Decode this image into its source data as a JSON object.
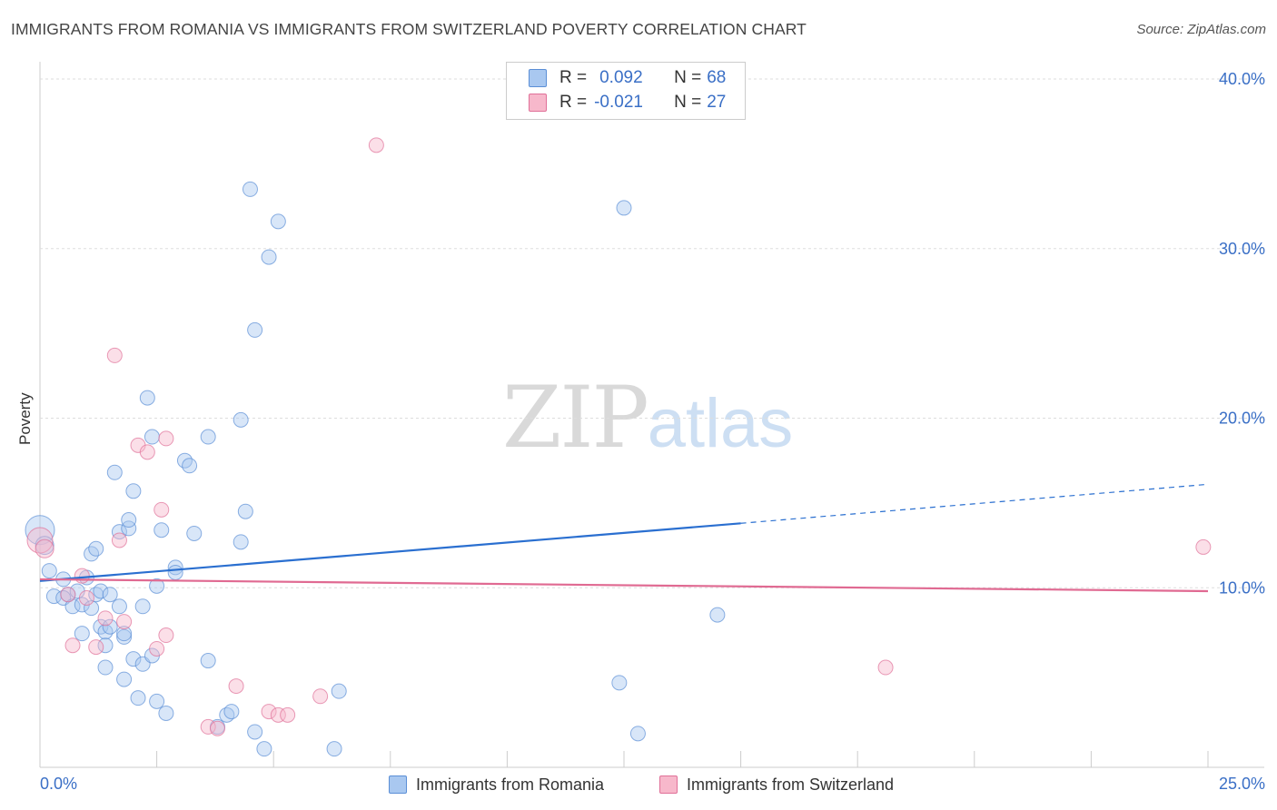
{
  "title": "IMMIGRANTS FROM ROMANIA VS IMMIGRANTS FROM SWITZERLAND POVERTY CORRELATION CHART",
  "source": "Source: ZipAtlas.com",
  "watermark": {
    "zip": "ZIP",
    "atlas": "atlas"
  },
  "legend": {
    "romania": {
      "r_label": "R =",
      "r_value": "0.092",
      "n_label": "N =",
      "n_value": "68"
    },
    "switzerland": {
      "r_label": "R =",
      "r_value": "-0.021",
      "n_label": "N =",
      "n_value": "27"
    }
  },
  "colors": {
    "romania_fill": "#a9c8f0",
    "romania_stroke": "#5b8fd6",
    "romania_line": "#2a6fd0",
    "switzerland_fill": "#f7b8cb",
    "switzerland_stroke": "#e07098",
    "switzerland_line": "#e06a92",
    "axis_text": "#3a6fc6"
  },
  "chart_data": {
    "type": "scatter",
    "title": "IMMIGRANTS FROM ROMANIA VS IMMIGRANTS FROM SWITZERLAND POVERTY CORRELATION CHART",
    "xlabel": "",
    "ylabel": "Poverty",
    "xlim": [
      0,
      25
    ],
    "ylim": [
      0,
      40
    ],
    "x_tick_labels": [
      "0.0%",
      "25.0%"
    ],
    "y_tick_labels": [
      "10.0%",
      "20.0%",
      "30.0%",
      "40.0%"
    ],
    "y_ticks": [
      10,
      20,
      30,
      40
    ],
    "grid": true,
    "legend_position": "top-center",
    "series": [
      {
        "name": "Immigrants from Romania",
        "r": 0.092,
        "n": 68,
        "trend": {
          "x0": 0,
          "y0": 10.4,
          "x1": 15,
          "y1": 13.8,
          "dashed_to_x": 25,
          "dashed_to_y": 16.1
        },
        "points": [
          [
            0.0,
            13.4,
            16
          ],
          [
            0.1,
            12.5,
            10
          ],
          [
            0.2,
            11.0,
            8
          ],
          [
            0.3,
            9.5,
            8
          ],
          [
            0.5,
            10.5,
            8
          ],
          [
            0.6,
            9.6,
            8
          ],
          [
            0.5,
            9.4,
            8
          ],
          [
            0.8,
            9.8,
            8
          ],
          [
            0.7,
            8.9,
            8
          ],
          [
            0.9,
            9.0,
            8
          ],
          [
            1.0,
            10.6,
            8
          ],
          [
            0.9,
            7.3,
            8
          ],
          [
            1.1,
            8.8,
            8
          ],
          [
            1.2,
            9.6,
            8
          ],
          [
            1.3,
            7.7,
            8
          ],
          [
            1.4,
            7.4,
            8
          ],
          [
            1.1,
            12.0,
            8
          ],
          [
            1.2,
            12.3,
            8
          ],
          [
            1.3,
            9.8,
            8
          ],
          [
            1.5,
            9.6,
            8
          ],
          [
            1.5,
            7.7,
            8
          ],
          [
            1.4,
            6.6,
            8
          ],
          [
            1.4,
            5.3,
            8
          ],
          [
            1.7,
            8.9,
            8
          ],
          [
            1.6,
            16.8,
            8
          ],
          [
            1.7,
            13.3,
            8
          ],
          [
            1.8,
            4.6,
            8
          ],
          [
            1.8,
            7.1,
            8
          ],
          [
            1.8,
            7.3,
            8
          ],
          [
            1.9,
            13.5,
            8
          ],
          [
            1.9,
            14.0,
            8
          ],
          [
            2.0,
            5.8,
            8
          ],
          [
            2.0,
            15.7,
            8
          ],
          [
            2.1,
            3.5,
            8
          ],
          [
            2.2,
            8.9,
            8
          ],
          [
            2.2,
            5.5,
            8
          ],
          [
            2.3,
            21.2,
            8
          ],
          [
            2.4,
            18.9,
            8
          ],
          [
            2.4,
            6.0,
            8
          ],
          [
            2.5,
            10.1,
            8
          ],
          [
            2.5,
            3.3,
            8
          ],
          [
            2.6,
            13.4,
            8
          ],
          [
            2.7,
            2.6,
            8
          ],
          [
            2.9,
            11.2,
            8
          ],
          [
            2.9,
            10.9,
            8
          ],
          [
            3.1,
            17.5,
            8
          ],
          [
            3.2,
            17.2,
            8
          ],
          [
            3.3,
            13.2,
            8
          ],
          [
            3.6,
            18.9,
            8
          ],
          [
            3.6,
            5.7,
            8
          ],
          [
            3.8,
            1.8,
            8
          ],
          [
            4.0,
            2.5,
            8
          ],
          [
            4.1,
            2.7,
            8
          ],
          [
            4.3,
            12.7,
            8
          ],
          [
            4.3,
            19.9,
            8
          ],
          [
            4.4,
            14.5,
            8
          ],
          [
            4.5,
            33.5,
            8
          ],
          [
            4.6,
            1.5,
            8
          ],
          [
            4.6,
            25.2,
            8
          ],
          [
            4.8,
            0.5,
            8
          ],
          [
            4.9,
            29.5,
            8
          ],
          [
            5.1,
            31.6,
            8
          ],
          [
            6.4,
            3.9,
            8
          ],
          [
            6.3,
            0.5,
            8
          ],
          [
            12.5,
            32.4,
            8
          ],
          [
            12.4,
            4.4,
            8
          ],
          [
            12.8,
            1.4,
            8
          ],
          [
            14.5,
            8.4,
            8
          ]
        ]
      },
      {
        "name": "Immigrants from Switzerland",
        "r": -0.021,
        "n": 27,
        "trend": {
          "x0": 0,
          "y0": 10.5,
          "x1": 25,
          "y1": 9.8
        },
        "points": [
          [
            0.0,
            12.8,
            14
          ],
          [
            0.1,
            12.3,
            10
          ],
          [
            0.6,
            9.6,
            8
          ],
          [
            0.7,
            6.6,
            8
          ],
          [
            0.9,
            10.7,
            8
          ],
          [
            1.0,
            9.4,
            8
          ],
          [
            1.2,
            6.5,
            8
          ],
          [
            1.4,
            8.2,
            8
          ],
          [
            1.6,
            23.7,
            8
          ],
          [
            1.7,
            12.8,
            8
          ],
          [
            1.8,
            8.0,
            8
          ],
          [
            2.1,
            18.4,
            8
          ],
          [
            2.3,
            18.0,
            8
          ],
          [
            2.5,
            6.4,
            8
          ],
          [
            2.6,
            14.6,
            8
          ],
          [
            2.7,
            18.8,
            8
          ],
          [
            2.7,
            7.2,
            8
          ],
          [
            3.6,
            1.8,
            8
          ],
          [
            3.8,
            1.7,
            8
          ],
          [
            4.2,
            4.2,
            8
          ],
          [
            4.9,
            2.7,
            8
          ],
          [
            5.1,
            2.5,
            8
          ],
          [
            5.3,
            2.5,
            8
          ],
          [
            6.0,
            3.6,
            8
          ],
          [
            7.2,
            36.1,
            8
          ],
          [
            18.1,
            5.3,
            8
          ],
          [
            24.9,
            12.4,
            8
          ]
        ]
      }
    ]
  }
}
